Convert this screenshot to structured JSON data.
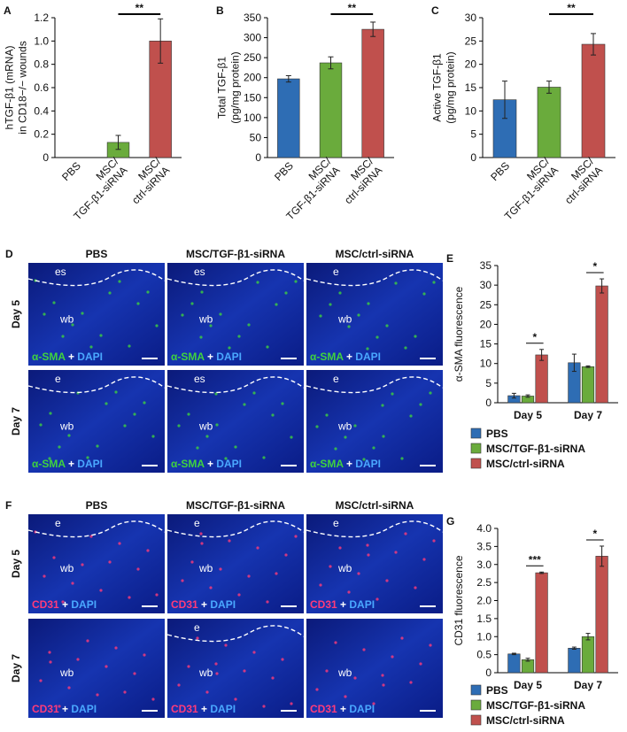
{
  "chart_data": [
    {
      "type": "bar",
      "panel": "A",
      "ylabel": "hTGF-β1 (mRNA)\nin CD18−/− wounds",
      "categories": [
        "PBS",
        "MSC/\nTGF-β1-siRNA",
        "MSC/\nctrl-siRNA"
      ],
      "values": [
        0,
        0.13,
        1.0
      ],
      "errors": [
        0,
        0.06,
        0.19
      ],
      "colors": [
        "#2e6db4",
        "#6aab3c",
        "#c0504d"
      ],
      "ylim": [
        0,
        1.2
      ],
      "yticks": [
        0,
        0.2,
        0.4,
        0.6,
        0.8,
        {
          "value": 1,
          "label": "1.0"
        },
        1.2
      ],
      "significance": [
        "**"
      ]
    },
    {
      "type": "bar",
      "panel": "B",
      "ylabel": "Total TGF-β1\n(pg/mg protein)",
      "categories": [
        "PBS",
        "MSC/\nTGF-β1-siRNA",
        "MSC/\nctrl-siRNA"
      ],
      "values": [
        197,
        237,
        321
      ],
      "errors": [
        8,
        15,
        18
      ],
      "colors": [
        "#2e6db4",
        "#6aab3c",
        "#c0504d"
      ],
      "ylim": [
        0,
        350
      ],
      "yticks": [
        0,
        50,
        100,
        150,
        200,
        250,
        300,
        350
      ],
      "significance": [
        "**"
      ]
    },
    {
      "type": "bar",
      "panel": "C",
      "ylabel": "Active TGF-β1\n(pg/mg protein)",
      "categories": [
        "PBS",
        "MSC/\nTGF-β1-siRNA",
        "MSC/\nctrl-siRNA"
      ],
      "values": [
        12.4,
        15.1,
        24.3
      ],
      "errors": [
        4,
        1.3,
        2.3
      ],
      "colors": [
        "#2e6db4",
        "#6aab3c",
        "#c0504d"
      ],
      "ylim": [
        0,
        30
      ],
      "yticks": [
        0,
        5,
        10,
        15,
        20,
        25,
        30
      ],
      "significance": [
        "**"
      ]
    },
    {
      "type": "grouped_bar",
      "panel": "E",
      "ylabel": "α-SMA fluorescence",
      "categories": [
        "Day 5",
        "Day 7"
      ],
      "series": [
        {
          "name": "PBS",
          "color": "#2e6db4",
          "values": [
            1.8,
            10.2
          ],
          "errors": [
            0.6,
            2.2
          ]
        },
        {
          "name": "MSC/TGF-β1-siRNA",
          "color": "#6aab3c",
          "values": [
            1.7,
            9.2
          ],
          "errors": [
            0.3,
            0.2
          ]
        },
        {
          "name": "MSC/ctrl-siRNA",
          "color": "#c0504d",
          "values": [
            12.2,
            29.8
          ],
          "errors": [
            1.4,
            1.8
          ]
        }
      ],
      "ylim": [
        0,
        35
      ],
      "yticks": [
        0,
        5,
        10,
        15,
        20,
        25,
        30,
        35
      ],
      "significance": [
        "*",
        "*"
      ]
    },
    {
      "type": "grouped_bar",
      "panel": "G",
      "ylabel": "CD31 fluorescence",
      "categories": [
        "Day 5",
        "Day 7"
      ],
      "series": [
        {
          "name": "PBS",
          "color": "#2e6db4",
          "values": [
            0.52,
            0.68
          ],
          "errors": [
            0.02,
            0.03
          ]
        },
        {
          "name": "MSC/TGF-β1-siRNA",
          "color": "#6aab3c",
          "values": [
            0.36,
            1.0
          ],
          "errors": [
            0.04,
            0.09
          ]
        },
        {
          "name": "MSC/ctrl-siRNA",
          "color": "#c0504d",
          "values": [
            2.77,
            3.23
          ],
          "errors": [
            0.02,
            0.28
          ]
        }
      ],
      "ylim": [
        0,
        4
      ],
      "yticks": [
        0,
        0.5,
        {
          "value": 1,
          "label": "1.0"
        },
        1.5,
        {
          "value": 2,
          "label": "2.0"
        },
        2.5,
        {
          "value": 3,
          "label": "3.0"
        },
        3.5,
        {
          "value": 4,
          "label": "4.0"
        }
      ],
      "significance": [
        "***",
        "*"
      ]
    }
  ],
  "image_panels": [
    {
      "panel": "D",
      "columns": [
        "PBS",
        "MSC/TGF-β1-siRNA",
        "MSC/ctrl-siRNA"
      ],
      "rows": [
        "Day 5",
        "Day 7"
      ],
      "images": [
        [
          [
            "es",
            "wb"
          ],
          [
            "es",
            "wb"
          ],
          [
            "e",
            "wb"
          ]
        ],
        [
          [
            "e",
            "wb"
          ],
          [
            "es",
            "wb"
          ],
          [
            "e",
            "wb"
          ]
        ]
      ],
      "stain": [
        "α-SMA",
        "+",
        "DAPI"
      ],
      "stain_color": "#3fd23f"
    },
    {
      "panel": "F",
      "columns": [
        "PBS",
        "MSC/TGF-β1-siRNA",
        "MSC/ctrl-siRNA"
      ],
      "rows": [
        "Day 5",
        "Day 7"
      ],
      "images": [
        [
          [
            "e",
            "wb"
          ],
          [
            "e",
            "wb"
          ],
          [
            "e",
            "wb"
          ]
        ],
        [
          [
            "wb"
          ],
          [
            "e",
            "wb"
          ],
          [
            "wb"
          ]
        ]
      ],
      "stain": [
        "CD31",
        "+",
        "DAPI"
      ],
      "stain_color": "#ff3b7a"
    }
  ]
}
